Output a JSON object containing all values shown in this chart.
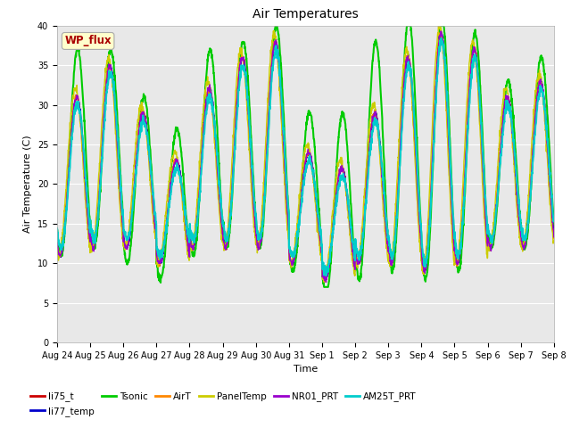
{
  "title": "Air Temperatures",
  "xlabel": "Time",
  "ylabel": "Air Temperature (C)",
  "ylim": [
    0,
    40
  ],
  "yticks": [
    0,
    5,
    10,
    15,
    20,
    25,
    30,
    35,
    40
  ],
  "annotation": "WP_flux",
  "bg_color": "#e8e8e8",
  "series_names": [
    "li75_t",
    "li77_temp",
    "Tsonic",
    "AirT",
    "PanelTemp",
    "NR01_PRT",
    "AM25T_PRT"
  ],
  "series_colors": [
    "#cc0000",
    "#0000cc",
    "#00cc00",
    "#ff8800",
    "#cccc00",
    "#9900cc",
    "#00cccc"
  ],
  "series_lw": [
    1.0,
    1.0,
    1.5,
    1.0,
    1.0,
    1.0,
    1.5
  ],
  "xtick_labels": [
    "Aug 24",
    "Aug 25",
    "Aug 26",
    "Aug 27",
    "Aug 28",
    "Aug 29",
    "Aug 30",
    "Aug 31",
    "Sep 1",
    "Sep 2",
    "Sep 3",
    "Sep 4",
    "Sep 5",
    "Sep 6",
    "Sep 7",
    "Sep 8"
  ],
  "n_days": 15,
  "seed": 42,
  "title_fontsize": 10,
  "label_fontsize": 8,
  "tick_fontsize": 7,
  "legend_fontsize": 7.5
}
